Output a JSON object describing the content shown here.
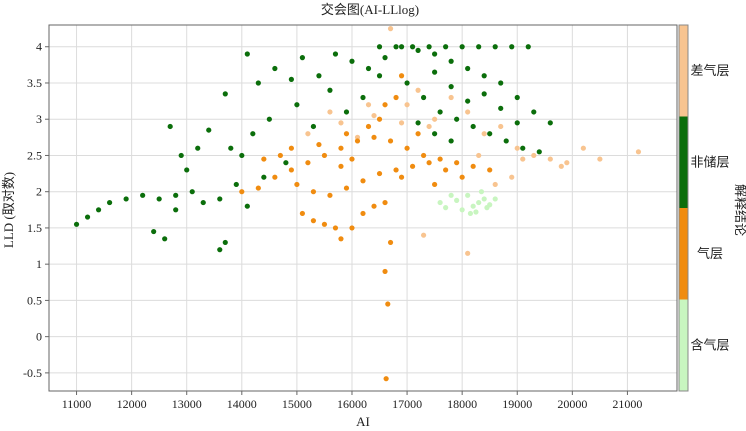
{
  "chart_data": {
    "type": "scatter",
    "title": "交会图(AI-LLlog)",
    "xlabel": "AI",
    "ylabel": "LLD (取对数)",
    "xlim": [
      10500,
      21900
    ],
    "ylim": [
      -0.75,
      4.3
    ],
    "xticks": [
      11000,
      12000,
      13000,
      14000,
      15000,
      16000,
      17000,
      18000,
      19000,
      20000,
      21000
    ],
    "yticks": [
      -0.5,
      0,
      0.5,
      1,
      1.5,
      2,
      2.5,
      3,
      3.5,
      4
    ],
    "grid": true,
    "colorbar": {
      "title": "解释结论",
      "position": "right",
      "categories": [
        {
          "label": "差气层",
          "color": "#f8c490"
        },
        {
          "label": "非储层",
          "color": "#0b6e0b"
        },
        {
          "label": "气层",
          "color": "#f08c10"
        },
        {
          "label": "含气层",
          "color": "#c8f5c0"
        }
      ]
    },
    "series": [
      {
        "name": "含气层",
        "color": "#c8f5c0",
        "points": [
          [
            18000,
            1.75
          ],
          [
            18200,
            1.8
          ],
          [
            18300,
            1.85
          ],
          [
            18400,
            1.9
          ],
          [
            18100,
            1.95
          ],
          [
            18500,
            1.82
          ],
          [
            17700,
            1.78
          ],
          [
            17900,
            1.88
          ],
          [
            18250,
            1.72
          ],
          [
            18600,
            1.9
          ],
          [
            17600,
            1.85
          ],
          [
            18350,
            2.0
          ],
          [
            18150,
            1.7
          ],
          [
            17800,
            1.95
          ],
          [
            18450,
            1.78
          ]
        ]
      },
      {
        "name": "差气层",
        "color": "#f8c490",
        "points": [
          [
            16700,
            4.25
          ],
          [
            17000,
            3.2
          ],
          [
            17200,
            3.4
          ],
          [
            17500,
            3.0
          ],
          [
            17800,
            3.3
          ],
          [
            18100,
            3.1
          ],
          [
            18400,
            2.8
          ],
          [
            18700,
            2.9
          ],
          [
            19000,
            2.6
          ],
          [
            19300,
            2.5
          ],
          [
            19600,
            2.45
          ],
          [
            19900,
            2.4
          ],
          [
            20200,
            2.6
          ],
          [
            20500,
            2.45
          ],
          [
            21200,
            2.55
          ],
          [
            19800,
            2.35
          ],
          [
            18900,
            2.2
          ],
          [
            18600,
            2.1
          ],
          [
            17400,
            2.9
          ],
          [
            16900,
            2.95
          ],
          [
            16400,
            3.05
          ],
          [
            16100,
            2.75
          ],
          [
            15800,
            2.95
          ],
          [
            17300,
            1.4
          ],
          [
            18100,
            1.15
          ],
          [
            15200,
            2.8
          ],
          [
            15600,
            3.1
          ],
          [
            16300,
            3.2
          ],
          [
            19100,
            2.45
          ],
          [
            18300,
            2.5
          ]
        ]
      },
      {
        "name": "气层",
        "color": "#f08c10",
        "points": [
          [
            14000,
            2.0
          ],
          [
            14300,
            2.05
          ],
          [
            14600,
            2.2
          ],
          [
            14900,
            2.3
          ],
          [
            15200,
            2.4
          ],
          [
            15500,
            2.5
          ],
          [
            15800,
            2.6
          ],
          [
            16100,
            2.7
          ],
          [
            16400,
            2.75
          ],
          [
            16700,
            2.7
          ],
          [
            17000,
            2.6
          ],
          [
            17300,
            2.5
          ],
          [
            17600,
            2.45
          ],
          [
            17900,
            2.4
          ],
          [
            18200,
            2.35
          ],
          [
            18500,
            2.3
          ],
          [
            15000,
            2.1
          ],
          [
            15300,
            2.0
          ],
          [
            15600,
            1.95
          ],
          [
            15900,
            2.05
          ],
          [
            16200,
            2.15
          ],
          [
            16500,
            2.25
          ],
          [
            16800,
            2.3
          ],
          [
            17100,
            2.35
          ],
          [
            17400,
            2.4
          ],
          [
            17700,
            2.3
          ],
          [
            18000,
            2.2
          ],
          [
            15100,
            1.7
          ],
          [
            15300,
            1.6
          ],
          [
            15500,
            1.55
          ],
          [
            15700,
            1.5
          ],
          [
            15800,
            1.35
          ],
          [
            16000,
            1.5
          ],
          [
            16200,
            1.7
          ],
          [
            16400,
            1.8
          ],
          [
            16600,
            1.85
          ],
          [
            16700,
            1.3
          ],
          [
            16600,
            0.9
          ],
          [
            16650,
            0.45
          ],
          [
            16620,
            -0.58
          ],
          [
            14900,
            2.6
          ],
          [
            15400,
            2.65
          ],
          [
            15900,
            2.8
          ],
          [
            16300,
            2.9
          ],
          [
            16500,
            3.0
          ],
          [
            16800,
            3.3
          ],
          [
            16900,
            3.6
          ],
          [
            16600,
            3.2
          ],
          [
            17200,
            2.8
          ],
          [
            14400,
            2.45
          ],
          [
            14700,
            2.5
          ],
          [
            15800,
            2.35
          ],
          [
            16000,
            2.45
          ],
          [
            16900,
            2.2
          ],
          [
            17500,
            2.1
          ]
        ]
      },
      {
        "name": "非储层",
        "color": "#0b6e0b",
        "points": [
          [
            11000,
            1.55
          ],
          [
            11200,
            1.65
          ],
          [
            11400,
            1.75
          ],
          [
            11600,
            1.85
          ],
          [
            11900,
            1.9
          ],
          [
            12200,
            1.95
          ],
          [
            12500,
            1.9
          ],
          [
            12800,
            1.95
          ],
          [
            13100,
            2.0
          ],
          [
            13300,
            1.85
          ],
          [
            13600,
            1.9
          ],
          [
            12400,
            1.45
          ],
          [
            12600,
            1.35
          ],
          [
            12800,
            1.75
          ],
          [
            13000,
            2.3
          ],
          [
            13200,
            2.6
          ],
          [
            13400,
            2.85
          ],
          [
            13700,
            3.35
          ],
          [
            13600,
            1.2
          ],
          [
            13700,
            1.3
          ],
          [
            12900,
            2.5
          ],
          [
            12700,
            2.9
          ],
          [
            14100,
            3.9
          ],
          [
            14300,
            3.5
          ],
          [
            14600,
            3.7
          ],
          [
            14900,
            3.55
          ],
          [
            15100,
            3.85
          ],
          [
            15400,
            3.6
          ],
          [
            15700,
            3.9
          ],
          [
            16000,
            3.8
          ],
          [
            16300,
            3.7
          ],
          [
            16600,
            3.85
          ],
          [
            16900,
            4.0
          ],
          [
            17200,
            3.95
          ],
          [
            17500,
            3.9
          ],
          [
            17800,
            3.8
          ],
          [
            18100,
            3.7
          ],
          [
            18400,
            3.6
          ],
          [
            18700,
            3.5
          ],
          [
            19000,
            3.3
          ],
          [
            19300,
            3.1
          ],
          [
            19600,
            2.95
          ],
          [
            16500,
            4.0
          ],
          [
            16800,
            4.0
          ],
          [
            17100,
            4.0
          ],
          [
            17400,
            4.0
          ],
          [
            17700,
            4.0
          ],
          [
            18000,
            4.0
          ],
          [
            18300,
            4.0
          ],
          [
            18600,
            4.0
          ],
          [
            18900,
            4.0
          ],
          [
            19200,
            4.0
          ],
          [
            14000,
            2.5
          ],
          [
            14200,
            2.8
          ],
          [
            14500,
            3.0
          ],
          [
            14800,
            2.4
          ],
          [
            15000,
            3.2
          ],
          [
            15300,
            2.9
          ],
          [
            15600,
            3.4
          ],
          [
            15900,
            3.1
          ],
          [
            16200,
            3.3
          ],
          [
            16500,
            3.6
          ],
          [
            17000,
            3.5
          ],
          [
            17300,
            3.3
          ],
          [
            17600,
            3.1
          ],
          [
            17900,
            3.0
          ],
          [
            18200,
            2.9
          ],
          [
            18500,
            2.8
          ],
          [
            18800,
            2.7
          ],
          [
            19100,
            2.6
          ],
          [
            19400,
            2.55
          ],
          [
            17500,
            3.65
          ],
          [
            17800,
            3.45
          ],
          [
            18100,
            3.25
          ],
          [
            18400,
            3.35
          ],
          [
            18700,
            3.15
          ],
          [
            19000,
            2.95
          ],
          [
            17200,
            2.95
          ],
          [
            17500,
            2.8
          ],
          [
            17800,
            2.7
          ],
          [
            14400,
            2.2
          ],
          [
            13900,
            2.1
          ],
          [
            14100,
            1.8
          ],
          [
            13800,
            2.6
          ]
        ]
      }
    ]
  }
}
